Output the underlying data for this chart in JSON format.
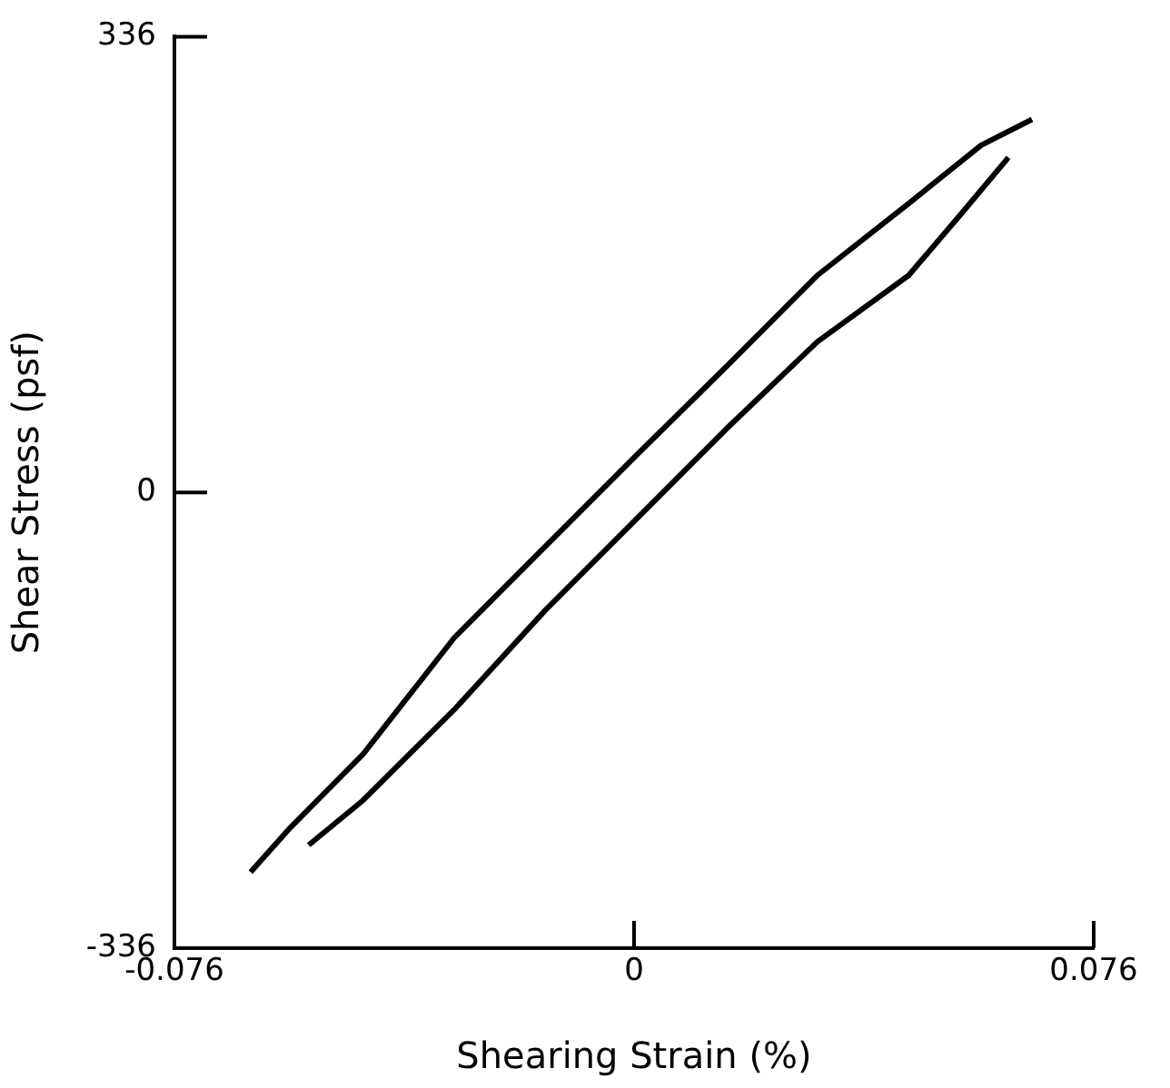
{
  "chart_data": {
    "type": "line",
    "xlabel": "Shearing Strain (%)",
    "ylabel": "Shear Stress (psf)",
    "series": [
      {
        "color": "#000000",
        "x": [
          -0.0634,
          -0.0568,
          -0.0448,
          -0.0297,
          -0.0147,
          0.0003,
          0.0153,
          0.0303,
          0.0454,
          0.0574,
          0.0658
        ],
        "values": [
          -280,
          -247,
          -193,
          -107,
          -40,
          27,
          93,
          160,
          213,
          256,
          275
        ]
      },
      {
        "color": "#000000",
        "x": [
          -0.0538,
          -0.0448,
          -0.0297,
          -0.0147,
          0.0003,
          0.0153,
          0.0303,
          0.0454,
          0.0544,
          0.0619
        ],
        "values": [
          -260,
          -227,
          -160,
          -87,
          -20,
          47,
          111,
          160,
          207,
          247
        ]
      }
    ],
    "xlim": [
      -0.076,
      0.076
    ],
    "xticks": [
      -0.076,
      0,
      0.076
    ],
    "ylim": [
      -336,
      336
    ],
    "yticks": [
      -336,
      0,
      336
    ],
    "grid": false,
    "legend": false,
    "marker": "none",
    "line_style": "solid"
  }
}
